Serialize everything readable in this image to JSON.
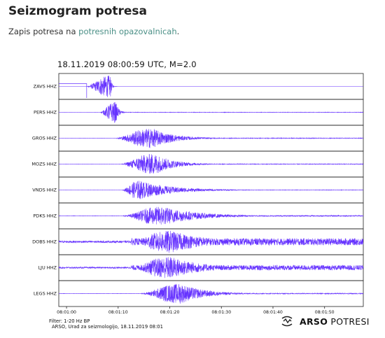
{
  "page": {
    "title": "Seizmogram potresa",
    "intro_prefix": "Zapis potresa na ",
    "intro_link": "potresnih opazovalnicah",
    "intro_suffix": "."
  },
  "figure": {
    "heading": "18.11.2019  08:00:59 UTC, M=2.0",
    "filter": "Filter: 1-20 Hz BP",
    "credit": "ARSO, Urad za seizmologijo, 18.11.2019  08:01",
    "brand_bold": "ARSO",
    "brand_light": " POTRESI",
    "brand_icon": "arso-logo-icon",
    "trace_color": "#6633ff"
  },
  "chart_data": {
    "type": "line",
    "title": "18.11.2019  08:00:59 UTC, M=2.0",
    "xlabel": "",
    "ylabel": "",
    "x_ticks": [
      "08:01:00",
      "08:01:10",
      "08:01:20",
      "08:01:30",
      "08:01:40",
      "08:01:50"
    ],
    "x_tick_seconds": [
      0,
      10,
      20,
      30,
      40,
      50
    ],
    "xlim_seconds": [
      -1.5,
      57.5
    ],
    "grid": false,
    "series": [
      {
        "name": "ZAVS HHZ",
        "onset": 3.9,
        "peak": 8.5,
        "amp": 1.0,
        "noise": 0.0,
        "decay": 0.25
      },
      {
        "name": "PERS HHZ",
        "onset": 6.5,
        "peak": 9.5,
        "amp": 0.95,
        "noise": 0.02,
        "decay": 0.6
      },
      {
        "name": "GROS HHZ",
        "onset": 9.5,
        "peak": 16.5,
        "amp": 0.9,
        "noise": 0.03,
        "decay": 4.0
      },
      {
        "name": "MOZS HHZ",
        "onset": 10.5,
        "peak": 17.0,
        "amp": 0.95,
        "noise": 0.03,
        "decay": 3.5
      },
      {
        "name": "VNDS HHZ",
        "onset": 10.8,
        "peak": 14.0,
        "amp": 0.85,
        "noise": 0.02,
        "decay": 6.0
      },
      {
        "name": "PDKS HHZ",
        "onset": 11.0,
        "peak": 18.5,
        "amp": 0.85,
        "noise": 0.05,
        "decay": 6.5
      },
      {
        "name": "DOBS HHZ",
        "onset": 12.5,
        "peak": 20.0,
        "amp": 1.0,
        "noise": 0.3,
        "decay": 7.0
      },
      {
        "name": "LJU HHZ",
        "onset": 12.5,
        "peak": 20.0,
        "amp": 1.0,
        "noise": 0.22,
        "decay": 6.0
      },
      {
        "name": "LEGS HHZ",
        "onset": 14.5,
        "peak": 22.0,
        "amp": 0.9,
        "noise": 0.04,
        "decay": 4.5
      }
    ]
  }
}
